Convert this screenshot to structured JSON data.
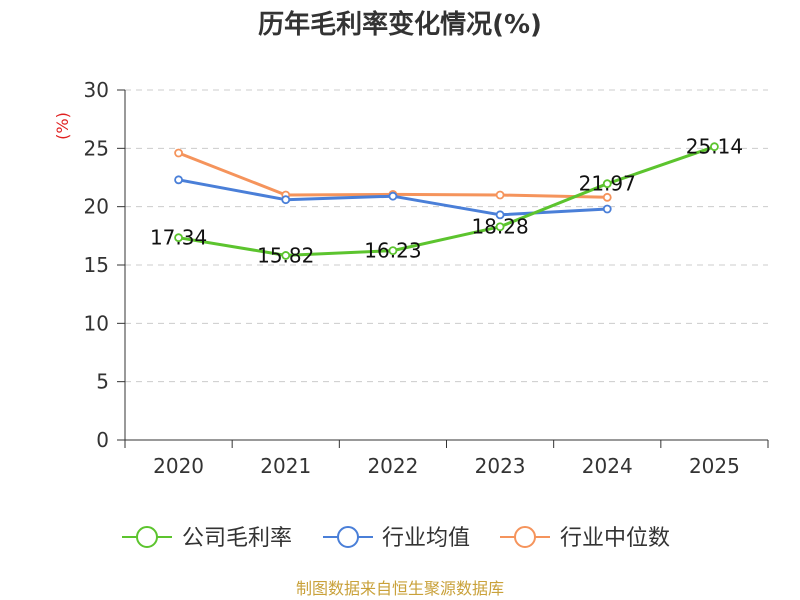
{
  "chart_data": {
    "type": "line",
    "title": "历年毛利率变化情况(%)",
    "ylabel": "(%)",
    "xlabel": "",
    "categories": [
      "2020",
      "2021",
      "2022",
      "2023",
      "2024",
      "2025"
    ],
    "ylim": [
      0,
      30
    ],
    "yticks": [
      0,
      5,
      10,
      15,
      20,
      25,
      30
    ],
    "grid": true,
    "legend_position": "bottom",
    "series": [
      {
        "name": "公司毛利率",
        "color": "#5cc42e",
        "values": [
          17.34,
          15.82,
          16.23,
          18.28,
          21.97,
          25.14
        ],
        "labels": [
          "17.34",
          "15.82",
          "16.23",
          "18.28",
          "21.97",
          "25.14"
        ]
      },
      {
        "name": "行业均值",
        "color": "#4a7fd8",
        "values": [
          22.3,
          20.6,
          20.9,
          19.3,
          19.8,
          null
        ]
      },
      {
        "name": "行业中位数",
        "color": "#f5945c",
        "values": [
          24.6,
          21.0,
          21.05,
          21.0,
          20.8,
          null
        ]
      }
    ]
  },
  "footer": {
    "source": "制图数据来自恒生聚源数据库"
  }
}
